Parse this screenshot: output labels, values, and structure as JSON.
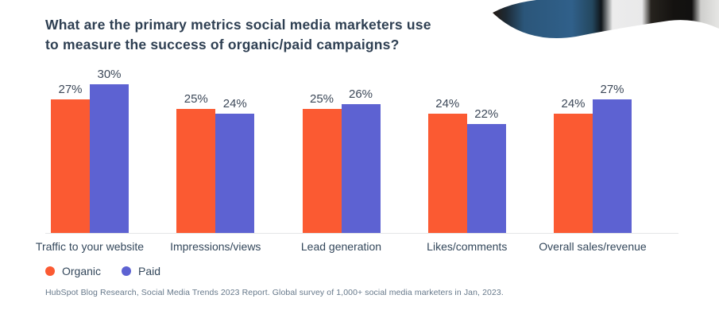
{
  "title": {
    "line1": "What are the primary metrics social media marketers use",
    "line2": "to measure the success of organic/paid campaigns?"
  },
  "chart_data": {
    "type": "bar",
    "title": "What are the primary metrics social media marketers use to measure the success of organic/paid campaigns?",
    "categories": [
      "Traffic to your website",
      "Impressions/views",
      "Lead generation",
      "Likes/comments",
      "Overall sales/revenue"
    ],
    "series": [
      {
        "name": "Organic",
        "color": "#fb5a32",
        "values": [
          27,
          25,
          25,
          24,
          24
        ]
      },
      {
        "name": "Paid",
        "color": "#5d62d2",
        "values": [
          30,
          24,
          26,
          22,
          27
        ]
      }
    ],
    "value_suffix": "%",
    "ylim": [
      0,
      30
    ],
    "grid": false,
    "legend_position": "bottom-left"
  },
  "legend": {
    "organic_label": "Organic",
    "paid_label": "Paid"
  },
  "footer": {
    "source": "HubSpot Blog Research, Social Media Trends 2023 Report. Global survey of 1,000+ social media marketers in Jan, 2023."
  },
  "colors": {
    "organic": "#fb5a32",
    "paid": "#5d62d2",
    "title_text": "#2e3f52",
    "axis_line": "#e4e6e8"
  }
}
